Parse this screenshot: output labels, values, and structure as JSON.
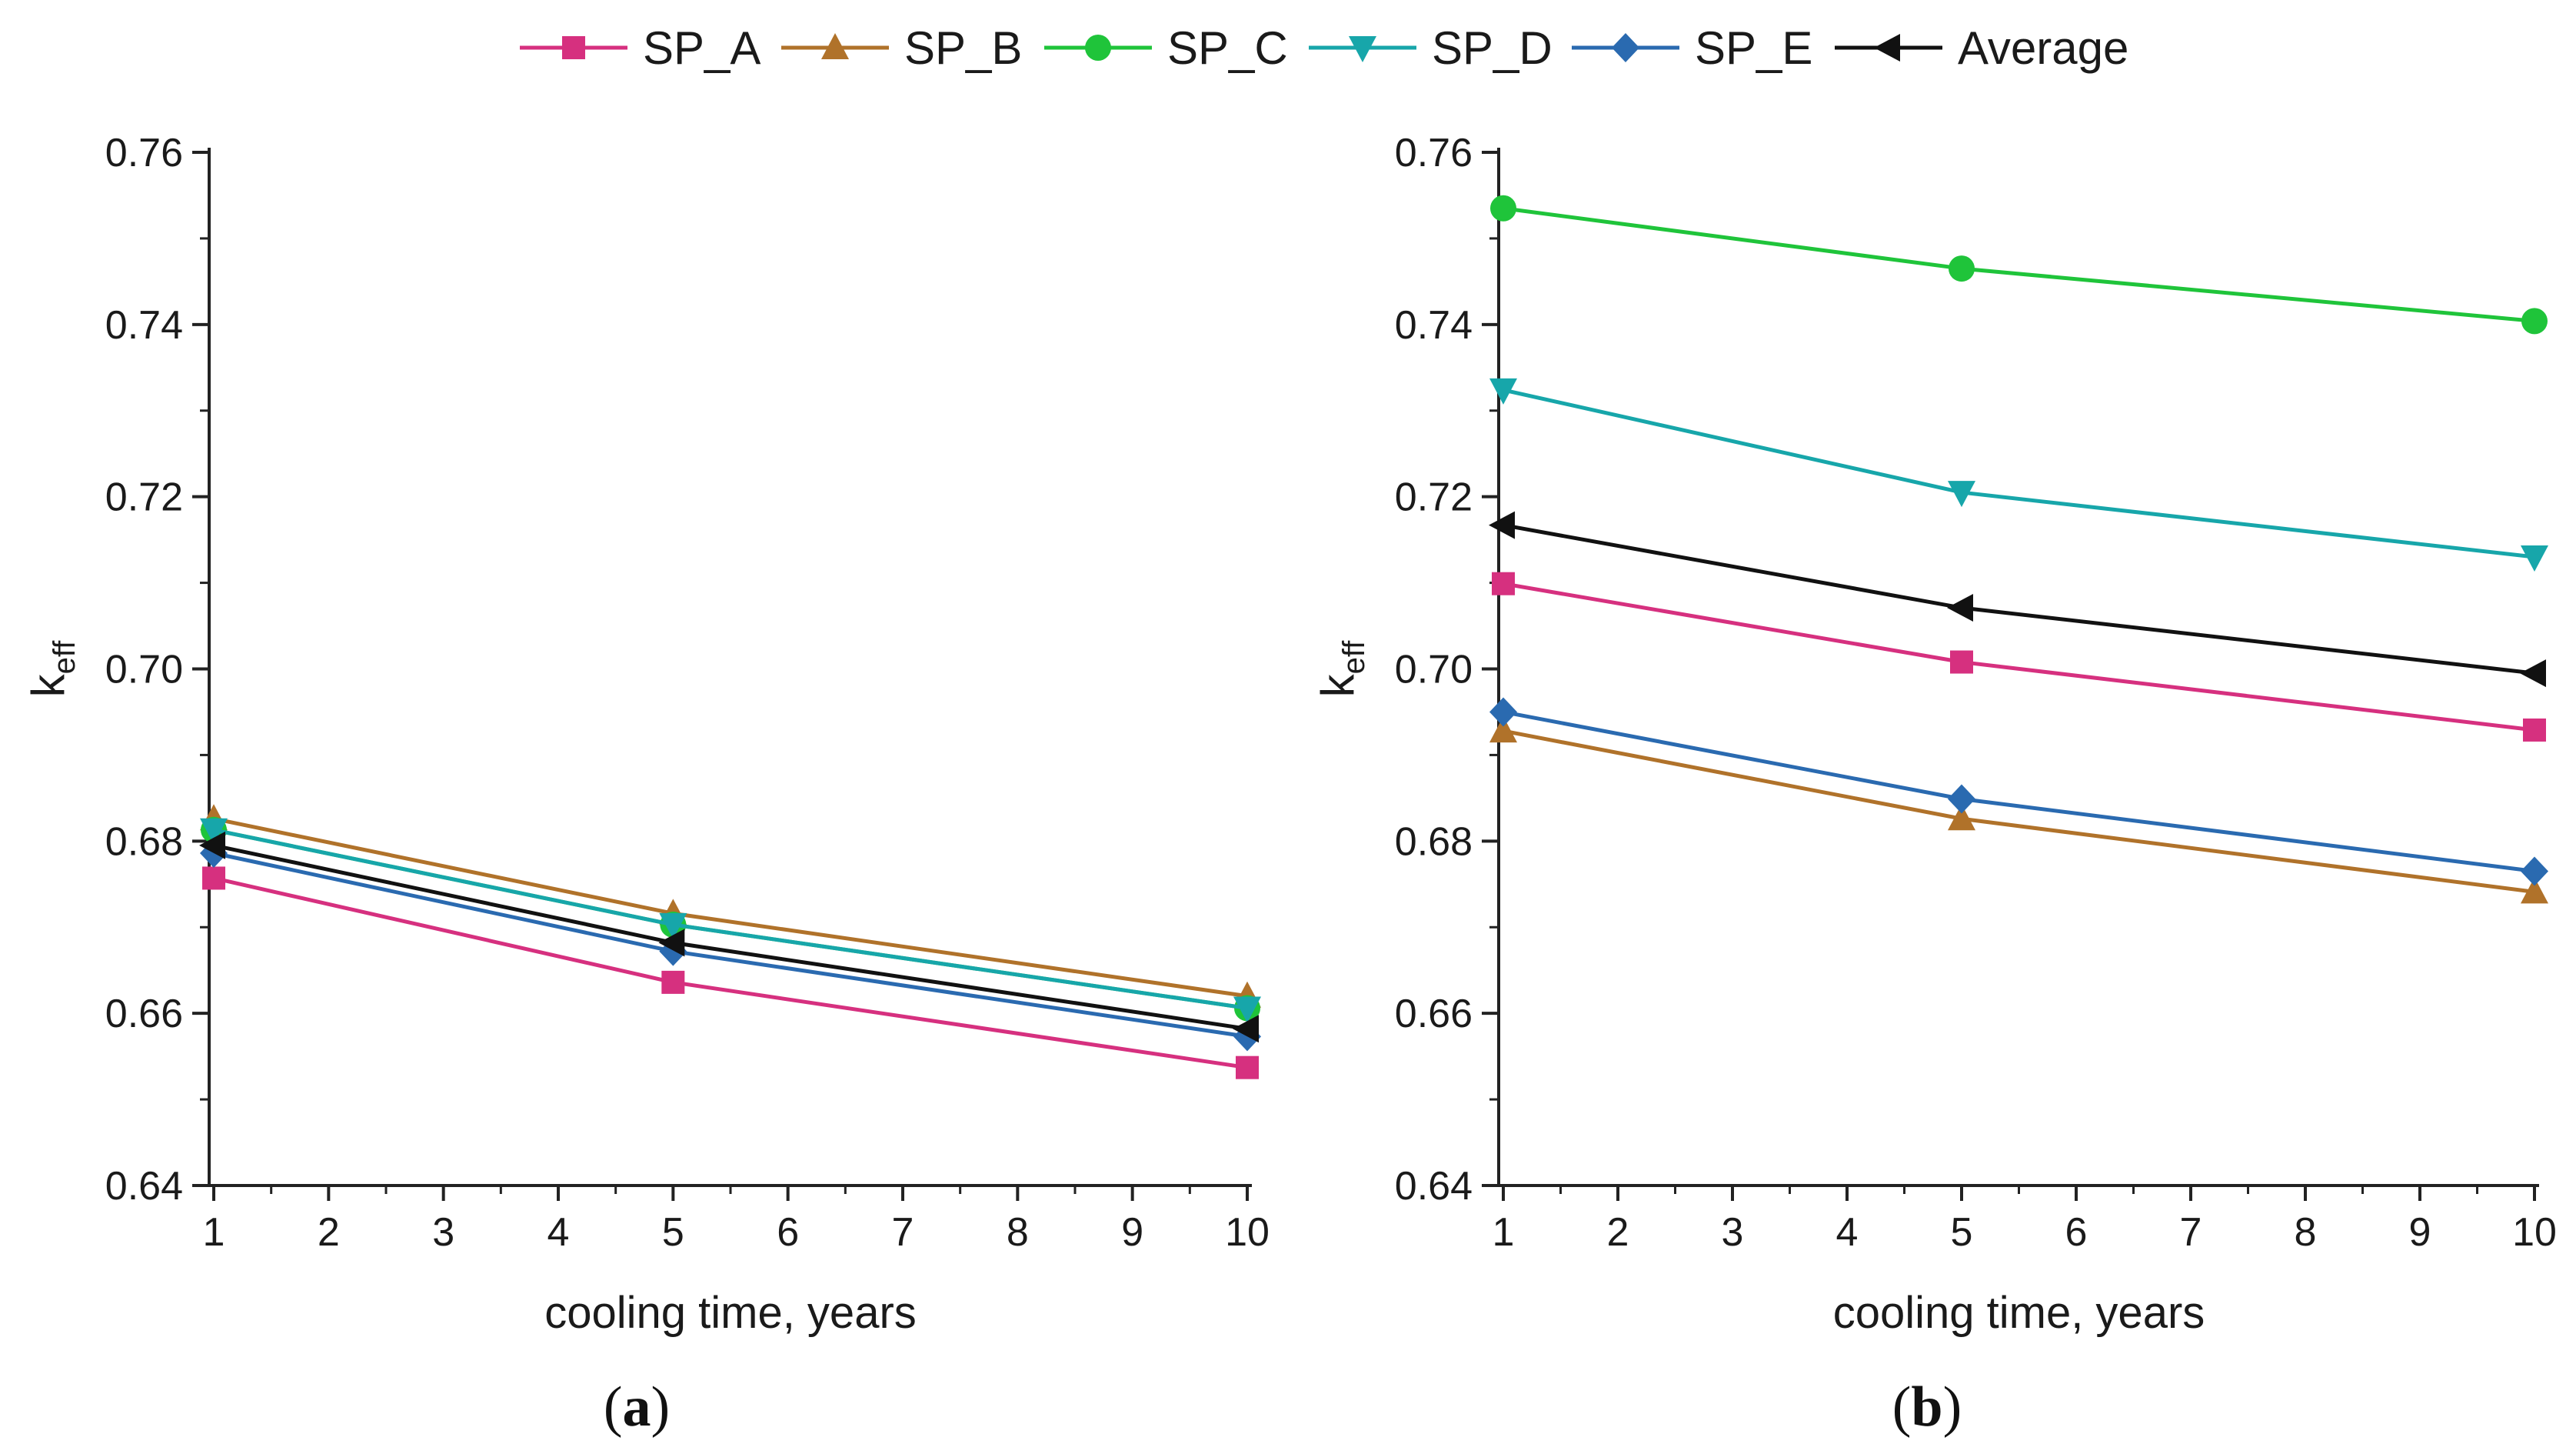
{
  "chart_data": [
    {
      "type": "line",
      "panel_label": "a",
      "xlabel": "cooling time, years",
      "ylabel": "k",
      "ylabel_sub": "eff",
      "xlim": [
        1,
        10
      ],
      "ylim": [
        0.64,
        0.76
      ],
      "xticks": [
        1,
        2,
        3,
        4,
        5,
        6,
        7,
        8,
        9,
        10
      ],
      "yticks": [
        "0.64",
        "0.66",
        "0.68",
        "0.70",
        "0.72",
        "0.74",
        "0.76"
      ],
      "x": [
        1,
        5,
        10
      ],
      "series": [
        {
          "name": "SP_A",
          "values": [
            0.6757,
            0.6636,
            0.6537
          ]
        },
        {
          "name": "SP_B",
          "values": [
            0.6826,
            0.6716,
            0.662
          ]
        },
        {
          "name": "SP_C",
          "values": [
            0.6813,
            0.6703,
            0.6606
          ]
        },
        {
          "name": "SP_D",
          "values": [
            0.6813,
            0.6703,
            0.6606
          ]
        },
        {
          "name": "SP_E",
          "values": [
            0.6786,
            0.6672,
            0.6573
          ]
        },
        {
          "name": "Average",
          "values": [
            0.6795,
            0.6682,
            0.6582
          ]
        }
      ]
    },
    {
      "type": "line",
      "panel_label": "b",
      "xlabel": "cooling time, years",
      "ylabel": "k",
      "ylabel_sub": "eff",
      "xlim": [
        1,
        10
      ],
      "ylim": [
        0.64,
        0.76
      ],
      "xticks": [
        1,
        2,
        3,
        4,
        5,
        6,
        7,
        8,
        9,
        10
      ],
      "yticks": [
        "0.64",
        "0.66",
        "0.68",
        "0.70",
        "0.72",
        "0.74",
        "0.76"
      ],
      "x": [
        1,
        5,
        10
      ],
      "series": [
        {
          "name": "SP_A",
          "values": [
            0.7099,
            0.7008,
            0.6929
          ]
        },
        {
          "name": "SP_B",
          "values": [
            0.6928,
            0.6826,
            0.6741
          ]
        },
        {
          "name": "SP_C",
          "values": [
            0.7535,
            0.7465,
            0.7404
          ]
        },
        {
          "name": "SP_D",
          "values": [
            0.7324,
            0.7205,
            0.713
          ]
        },
        {
          "name": "SP_E",
          "values": [
            0.695,
            0.6849,
            0.6765
          ]
        },
        {
          "name": "Average",
          "values": [
            0.7167,
            0.7071,
            0.6995
          ]
        }
      ]
    }
  ],
  "legend": [
    {
      "name": "SP_A",
      "color": "#d6307f",
      "marker": "square"
    },
    {
      "name": "SP_B",
      "color": "#b0722a",
      "marker": "triangle-up"
    },
    {
      "name": "SP_C",
      "color": "#1fc43a",
      "marker": "circle"
    },
    {
      "name": "SP_D",
      "color": "#17a6aa",
      "marker": "triangle-down"
    },
    {
      "name": "SP_E",
      "color": "#2a6ab0",
      "marker": "diamond"
    },
    {
      "name": "Average",
      "color": "#111111",
      "marker": "triangle-left"
    }
  ]
}
